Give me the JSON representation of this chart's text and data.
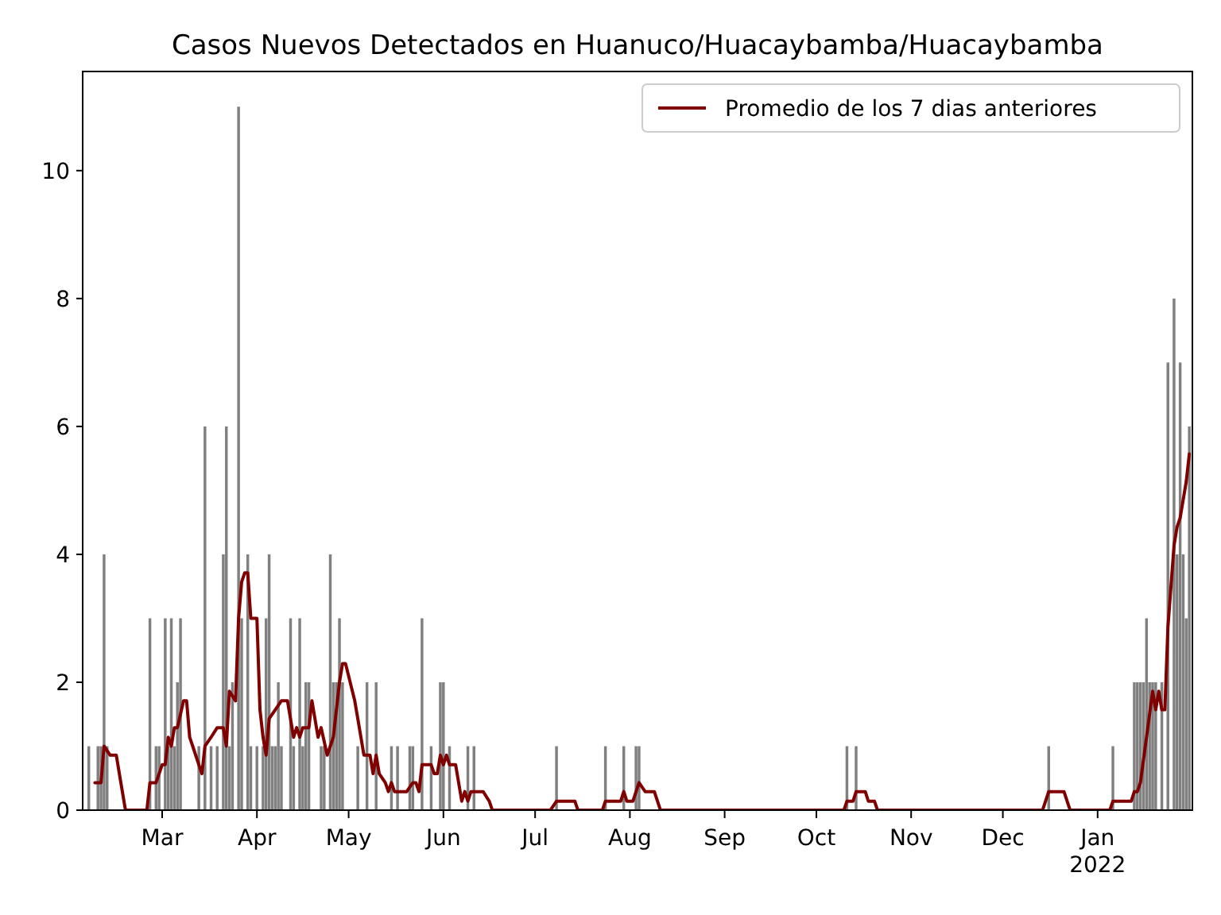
{
  "chart_data": {
    "type": "bar",
    "title": "Casos Nuevos Detectados en Huanuco/Huacaybamba/Huacaybamba",
    "xlim": [
      "2021-02-03",
      "2022-02-01"
    ],
    "xticks": [
      {
        "value": "2021-03-01",
        "label": "Mar"
      },
      {
        "value": "2021-04-01",
        "label": "Apr"
      },
      {
        "value": "2021-05-01",
        "label": "May"
      },
      {
        "value": "2021-06-01",
        "label": "Jun"
      },
      {
        "value": "2021-07-01",
        "label": "Jul"
      },
      {
        "value": "2021-08-01",
        "label": "Aug"
      },
      {
        "value": "2021-09-01",
        "label": "Sep"
      },
      {
        "value": "2021-10-01",
        "label": "Oct"
      },
      {
        "value": "2021-11-01",
        "label": "Nov"
      },
      {
        "value": "2021-12-01",
        "label": "Dec"
      },
      {
        "value": "2022-01-01",
        "label": "Jan\n2022"
      }
    ],
    "ylim": [
      0,
      11.55
    ],
    "yticks": [
      0,
      2,
      4,
      6,
      8,
      10
    ],
    "grid": false,
    "legend": "top right",
    "series": [
      {
        "color": "#808080",
        "x": [
          "2021-02-05",
          "2021-02-08",
          "2021-02-09",
          "2021-02-10",
          "2021-02-11",
          "2021-02-25",
          "2021-02-27",
          "2021-02-28",
          "2021-03-02",
          "2021-03-03",
          "2021-03-04",
          "2021-03-05",
          "2021-03-06",
          "2021-03-07",
          "2021-03-13",
          "2021-03-15",
          "2021-03-17",
          "2021-03-19",
          "2021-03-21",
          "2021-03-22",
          "2021-03-23",
          "2021-03-24",
          "2021-03-26",
          "2021-03-27",
          "2021-03-29",
          "2021-03-30",
          "2021-04-01",
          "2021-04-03",
          "2021-04-04",
          "2021-04-05",
          "2021-04-06",
          "2021-04-07",
          "2021-04-08",
          "2021-04-09",
          "2021-04-12",
          "2021-04-13",
          "2021-04-15",
          "2021-04-16",
          "2021-04-17",
          "2021-04-18",
          "2021-04-22",
          "2021-04-23",
          "2021-04-25",
          "2021-04-26",
          "2021-04-27",
          "2021-04-28",
          "2021-04-29",
          "2021-05-04",
          "2021-05-07",
          "2021-05-10",
          "2021-05-15",
          "2021-05-17",
          "2021-05-21",
          "2021-05-22",
          "2021-05-25",
          "2021-05-28",
          "2021-05-31",
          "2021-06-01",
          "2021-06-03",
          "2021-06-09",
          "2021-06-11",
          "2021-07-08",
          "2021-07-24",
          "2021-07-30",
          "2021-08-03",
          "2021-08-04",
          "2021-10-11",
          "2021-10-14",
          "2021-12-16",
          "2022-01-06",
          "2022-01-13",
          "2022-01-14",
          "2022-01-15",
          "2022-01-16",
          "2022-01-17",
          "2022-01-18",
          "2022-01-19",
          "2022-01-20",
          "2022-01-22",
          "2022-01-24",
          "2022-01-26",
          "2022-01-27",
          "2022-01-28",
          "2022-01-29",
          "2022-01-30",
          "2022-01-31"
        ],
        "values": [
          1,
          1,
          1,
          4,
          1,
          3,
          1,
          1,
          3,
          1,
          3,
          1,
          2,
          3,
          1,
          6,
          1,
          1,
          4,
          6,
          1,
          2,
          11,
          3,
          4,
          1,
          1,
          1,
          3,
          4,
          1,
          1,
          2,
          1,
          3,
          1,
          3,
          1,
          2,
          2,
          1,
          1,
          4,
          2,
          2,
          3,
          2,
          1,
          2,
          2,
          1,
          1,
          1,
          1,
          3,
          1,
          2,
          2,
          1,
          1,
          1,
          1,
          1,
          1,
          1,
          1,
          1,
          1,
          1,
          1,
          2,
          2,
          2,
          2,
          3,
          2,
          2,
          2,
          2,
          7,
          8,
          4,
          7,
          4,
          3,
          6
        ]
      },
      {
        "type": "line",
        "name": "Promedio de los 7 dias anteriores",
        "color": "#800000",
        "x": [
          "2021-02-07",
          "2021-02-09",
          "2021-02-10",
          "2021-02-12",
          "2021-02-14",
          "2021-02-15",
          "2021-02-17",
          "2021-02-24",
          "2021-02-25",
          "2021-02-27",
          "2021-03-01",
          "2021-03-02",
          "2021-03-03",
          "2021-03-04",
          "2021-03-05",
          "2021-03-06",
          "2021-03-08",
          "2021-03-09",
          "2021-03-10",
          "2021-03-11",
          "2021-03-13",
          "2021-03-14",
          "2021-03-15",
          "2021-03-17",
          "2021-03-19",
          "2021-03-21",
          "2021-03-22",
          "2021-03-23",
          "2021-03-25",
          "2021-03-26",
          "2021-03-27",
          "2021-03-28",
          "2021-03-29",
          "2021-03-30",
          "2021-04-01",
          "2021-04-02",
          "2021-04-03",
          "2021-04-04",
          "2021-04-05",
          "2021-04-09",
          "2021-04-11",
          "2021-04-13",
          "2021-04-14",
          "2021-04-15",
          "2021-04-16",
          "2021-04-18",
          "2021-04-19",
          "2021-04-21",
          "2021-04-22",
          "2021-04-24",
          "2021-04-26",
          "2021-04-28",
          "2021-04-29",
          "2021-04-30",
          "2021-05-03",
          "2021-05-04",
          "2021-05-06",
          "2021-05-08",
          "2021-05-09",
          "2021-05-10",
          "2021-05-11",
          "2021-05-13",
          "2021-05-14",
          "2021-05-15",
          "2021-05-16",
          "2021-05-20",
          "2021-05-22",
          "2021-05-23",
          "2021-05-24",
          "2021-05-25",
          "2021-05-28",
          "2021-05-29",
          "2021-05-30",
          "2021-05-31",
          "2021-06-01",
          "2021-06-02",
          "2021-06-03",
          "2021-06-05",
          "2021-06-07",
          "2021-06-08",
          "2021-06-09",
          "2021-06-10",
          "2021-06-14",
          "2021-06-16",
          "2021-06-17",
          "2021-07-06",
          "2021-07-08",
          "2021-07-14",
          "2021-07-15",
          "2021-07-23",
          "2021-07-24",
          "2021-07-29",
          "2021-07-30",
          "2021-07-31",
          "2021-08-02",
          "2021-08-04",
          "2021-08-06",
          "2021-08-09",
          "2021-08-11",
          "2021-10-10",
          "2021-10-11",
          "2021-10-13",
          "2021-10-14",
          "2021-10-17",
          "2021-10-18",
          "2021-10-20",
          "2021-10-21",
          "2021-12-14",
          "2021-12-16",
          "2021-12-21",
          "2021-12-23",
          "2022-01-05",
          "2022-01-06",
          "2022-01-12",
          "2022-01-13",
          "2022-01-14",
          "2022-01-15",
          "2022-01-17",
          "2022-01-19",
          "2022-01-20",
          "2022-01-21",
          "2022-01-22",
          "2022-01-23",
          "2022-01-24",
          "2022-01-26",
          "2022-01-27",
          "2022-01-28",
          "2022-01-30",
          "2022-01-31"
        ],
        "values": [
          0.43,
          0.43,
          1.0,
          0.86,
          0.86,
          0.57,
          0,
          0,
          0.43,
          0.43,
          0.71,
          0.71,
          1.14,
          1.0,
          1.29,
          1.29,
          1.71,
          1.71,
          1.14,
          1.0,
          0.71,
          0.57,
          1.0,
          1.14,
          1.29,
          1.29,
          1.0,
          1.86,
          1.71,
          3.0,
          3.57,
          3.71,
          3.71,
          3.0,
          3.0,
          1.57,
          1.14,
          0.86,
          1.43,
          1.71,
          1.71,
          1.14,
          1.29,
          1.14,
          1.29,
          1.29,
          1.71,
          1.14,
          1.29,
          0.86,
          1.14,
          2.0,
          2.29,
          2.29,
          1.71,
          1.43,
          0.86,
          0.86,
          0.57,
          0.86,
          0.57,
          0.43,
          0.29,
          0.43,
          0.29,
          0.29,
          0.43,
          0.43,
          0.29,
          0.71,
          0.71,
          0.57,
          0.57,
          0.86,
          0.71,
          0.86,
          0.71,
          0.71,
          0.14,
          0.29,
          0.14,
          0.29,
          0.29,
          0.14,
          0,
          0,
          0.14,
          0.14,
          0,
          0,
          0.14,
          0.14,
          0.29,
          0.14,
          0.14,
          0.43,
          0.29,
          0.29,
          0,
          0,
          0.14,
          0.14,
          0.29,
          0.29,
          0.14,
          0.14,
          0,
          0,
          0.29,
          0.29,
          0,
          0,
          0.14,
          0.14,
          0.29,
          0.29,
          0.43,
          1.14,
          1.86,
          1.57,
          1.86,
          1.57,
          1.57,
          2.86,
          4.14,
          4.43,
          4.57,
          5.14,
          5.57
        ]
      }
    ]
  }
}
